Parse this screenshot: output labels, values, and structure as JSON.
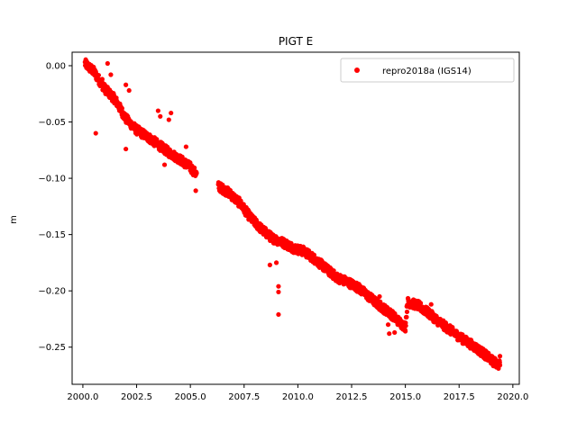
{
  "chart_data": {
    "type": "scatter",
    "title": "PIGT E",
    "xlabel": "",
    "ylabel": "m",
    "xlim": [
      1999.5,
      2020.3
    ],
    "ylim": [
      -0.283,
      0.012
    ],
    "x_ticks": [
      2000.0,
      2002.5,
      2005.0,
      2007.5,
      2010.0,
      2012.5,
      2015.0,
      2017.5,
      2020.0
    ],
    "x_tick_labels": [
      "2000.0",
      "2002.5",
      "2005.0",
      "2007.5",
      "2010.0",
      "2012.5",
      "2015.0",
      "2017.5",
      "2020.0"
    ],
    "y_ticks": [
      0.0,
      -0.05,
      -0.1,
      -0.15,
      -0.2,
      -0.25
    ],
    "y_tick_labels": [
      "0.00",
      "−0.05",
      "−0.10",
      "−0.15",
      "−0.20",
      "−0.25"
    ],
    "grid": false,
    "legend_position": "top-right",
    "series": [
      {
        "name": "repro2018a (IGS14)",
        "color": "#ff0000",
        "marker": "circle",
        "trend": [
          [
            2000.1,
            0.002
          ],
          [
            2000.5,
            -0.005
          ],
          [
            2001.0,
            -0.02
          ],
          [
            2001.5,
            -0.03
          ],
          [
            2002.0,
            -0.047
          ],
          [
            2002.5,
            -0.057
          ],
          [
            2003.0,
            -0.063
          ],
          [
            2003.5,
            -0.07
          ],
          [
            2004.0,
            -0.077
          ],
          [
            2004.5,
            -0.083
          ],
          [
            2005.0,
            -0.09
          ],
          [
            2005.3,
            -0.097
          ],
          [
            2006.3,
            -0.107
          ],
          [
            2006.8,
            -0.113
          ],
          [
            2007.3,
            -0.122
          ],
          [
            2007.8,
            -0.135
          ],
          [
            2008.3,
            -0.145
          ],
          [
            2008.8,
            -0.153
          ],
          [
            2009.3,
            -0.157
          ],
          [
            2009.8,
            -0.162
          ],
          [
            2010.3,
            -0.165
          ],
          [
            2010.8,
            -0.172
          ],
          [
            2011.3,
            -0.18
          ],
          [
            2011.8,
            -0.188
          ],
          [
            2012.3,
            -0.192
          ],
          [
            2012.8,
            -0.197
          ],
          [
            2013.3,
            -0.205
          ],
          [
            2013.8,
            -0.213
          ],
          [
            2014.3,
            -0.22
          ],
          [
            2014.8,
            -0.229
          ],
          [
            2015.0,
            -0.232
          ],
          [
            2015.1,
            -0.21
          ],
          [
            2015.6,
            -0.213
          ],
          [
            2016.1,
            -0.22
          ],
          [
            2016.6,
            -0.228
          ],
          [
            2017.1,
            -0.235
          ],
          [
            2017.6,
            -0.242
          ],
          [
            2018.1,
            -0.248
          ],
          [
            2018.6,
            -0.255
          ],
          [
            2019.1,
            -0.263
          ],
          [
            2019.4,
            -0.266
          ]
        ],
        "outliers": [
          [
            2000.6,
            -0.06
          ],
          [
            2000.9,
            -0.012
          ],
          [
            2001.15,
            0.002
          ],
          [
            2001.3,
            -0.008
          ],
          [
            2002.0,
            -0.017
          ],
          [
            2002.15,
            -0.022
          ],
          [
            2002.0,
            -0.074
          ],
          [
            2003.5,
            -0.04
          ],
          [
            2003.6,
            -0.045
          ],
          [
            2004.0,
            -0.048
          ],
          [
            2004.1,
            -0.042
          ],
          [
            2003.8,
            -0.088
          ],
          [
            2004.8,
            -0.072
          ],
          [
            2005.05,
            -0.095
          ],
          [
            2005.25,
            -0.111
          ],
          [
            2009.0,
            -0.175
          ],
          [
            2009.1,
            -0.196
          ],
          [
            2009.1,
            -0.201
          ],
          [
            2009.1,
            -0.221
          ],
          [
            2008.7,
            -0.177
          ],
          [
            2014.2,
            -0.23
          ],
          [
            2014.25,
            -0.238
          ],
          [
            2014.5,
            -0.237
          ],
          [
            2013.8,
            -0.205
          ],
          [
            2016.2,
            -0.212
          ],
          [
            2019.4,
            -0.258
          ]
        ]
      }
    ]
  }
}
